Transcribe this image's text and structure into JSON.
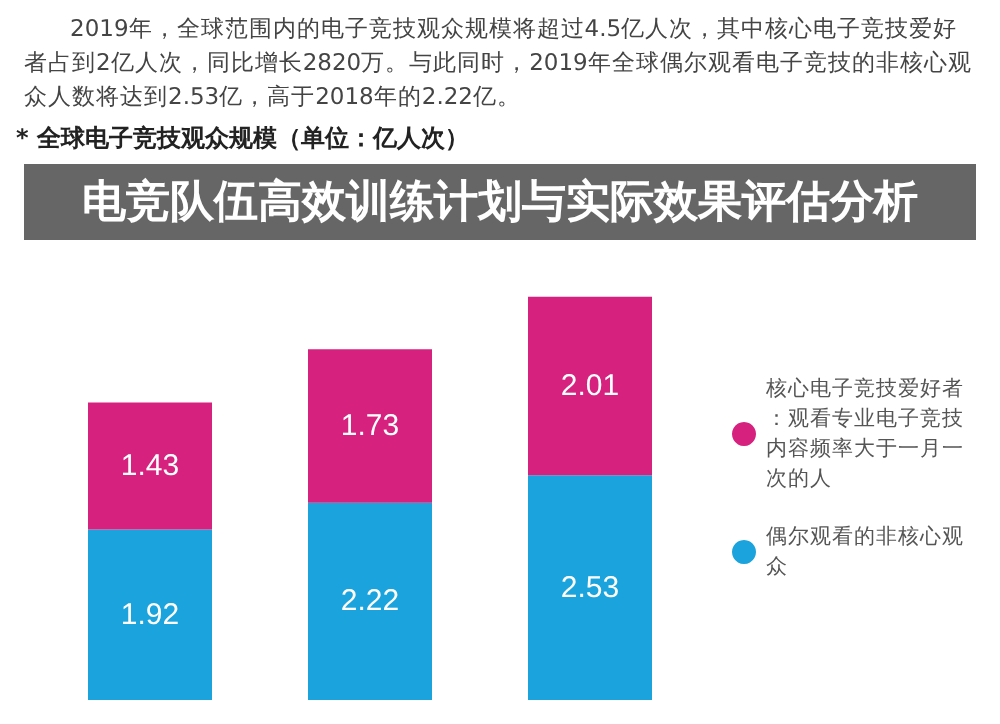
{
  "chart_data": {
    "type": "bar",
    "title": "电竞队伍高效训练计划与实际效果评估分析",
    "subtitle": "* 全球电子竞技观众规模（单位：亿人次）",
    "annotations": [
      "2019年，全球范围内的电子竞技观众规模将超过4.5亿人次，其中核心电子竞技爱好者占到2亿人次，同比增长2820万。与此同时，2019年全球偶尔观看电子竞技的非核心观众人数将达到2.53亿，高于2018年的2.22亿。"
    ],
    "categories": [
      null,
      null,
      null
    ],
    "stacked": true,
    "data_labels": true,
    "legend": "right",
    "series": [
      {
        "name": "偶尔观看的非核心观众",
        "color": "#1aa3dc",
        "values": [
          1.92,
          2.22,
          2.53
        ]
      },
      {
        "name": "核心电子竞技爱好者：观看专业电子竞技内容频率大于一月一次的人",
        "color": "#d6217e",
        "values": [
          1.43,
          1.73,
          2.01
        ]
      }
    ]
  }
}
